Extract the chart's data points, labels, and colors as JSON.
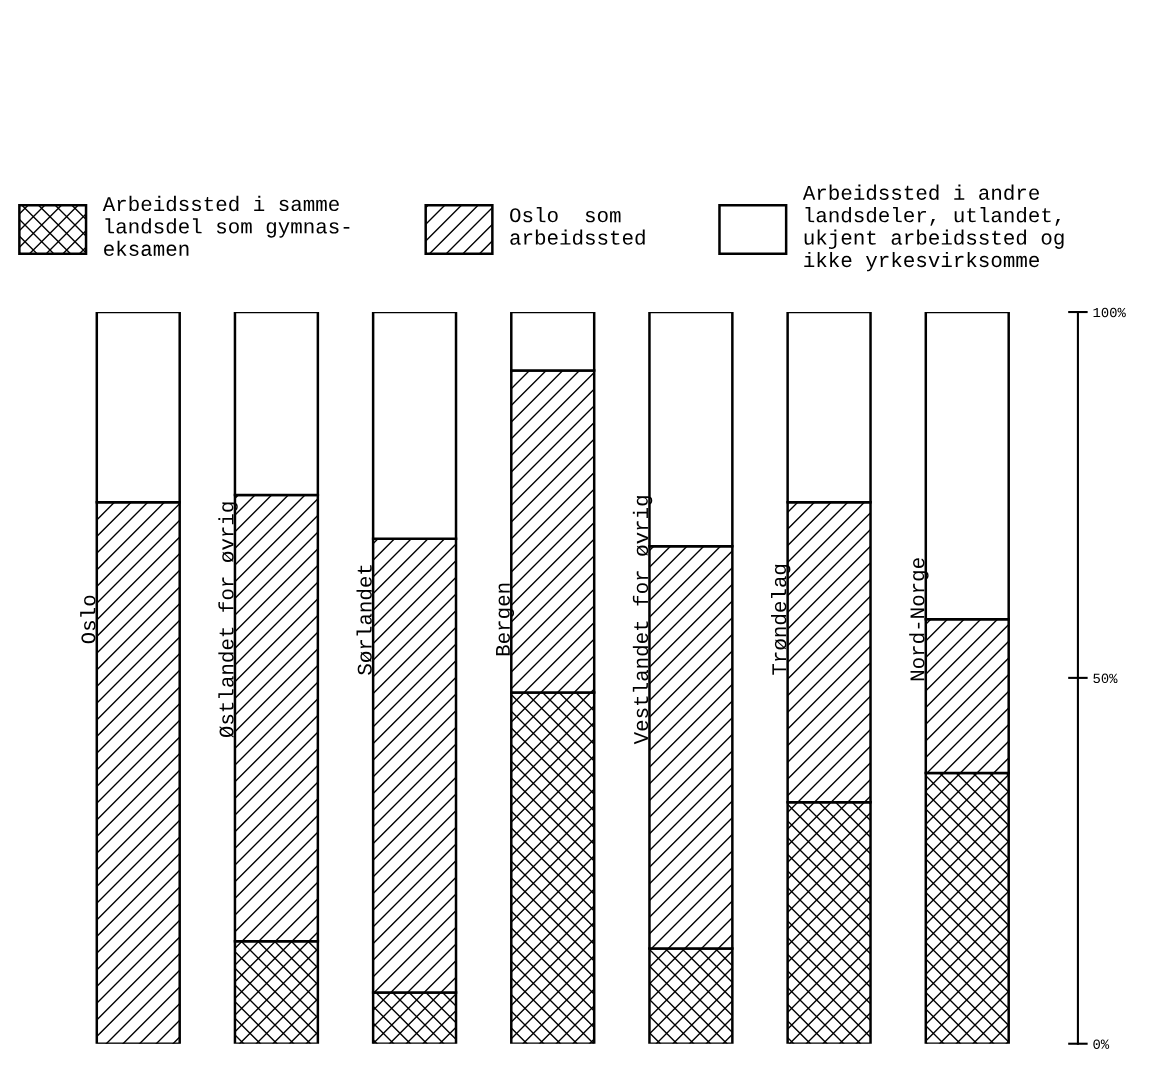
{
  "chart_data": {
    "type": "bar",
    "stacked": true,
    "categories": [
      "Oslo",
      "Østlandet for øvrig",
      "Sørlandet",
      "Bergen",
      "Vestlandet for øvrig",
      "Trøndelag",
      "Nord-Norge"
    ],
    "series": [
      {
        "name": "Arbeidssted i samme\nlandsdel som gymnas-\neksamen",
        "color": "#000000",
        "values": [
          0,
          14,
          7,
          48,
          13,
          33,
          37
        ]
      },
      {
        "name": "Oslo  som\narbeidssted",
        "color": "#000000",
        "values": [
          74,
          61,
          62,
          44,
          55,
          41,
          21
        ]
      },
      {
        "name": "Arbeidssted i andre\nlandsdeler, utlandet,\nukjent arbeidssted og\nikke yrkesvirksomme",
        "color": "#000000",
        "values": [
          26,
          25,
          31,
          8,
          32,
          26,
          42
        ]
      }
    ],
    "ylim": [
      0,
      100
    ],
    "yticks": [
      {
        "value": 0,
        "label": "0%"
      },
      {
        "value": 50,
        "label": "50%"
      },
      {
        "value": 100,
        "label": "100%"
      }
    ],
    "legend": "top",
    "grid": false
  }
}
